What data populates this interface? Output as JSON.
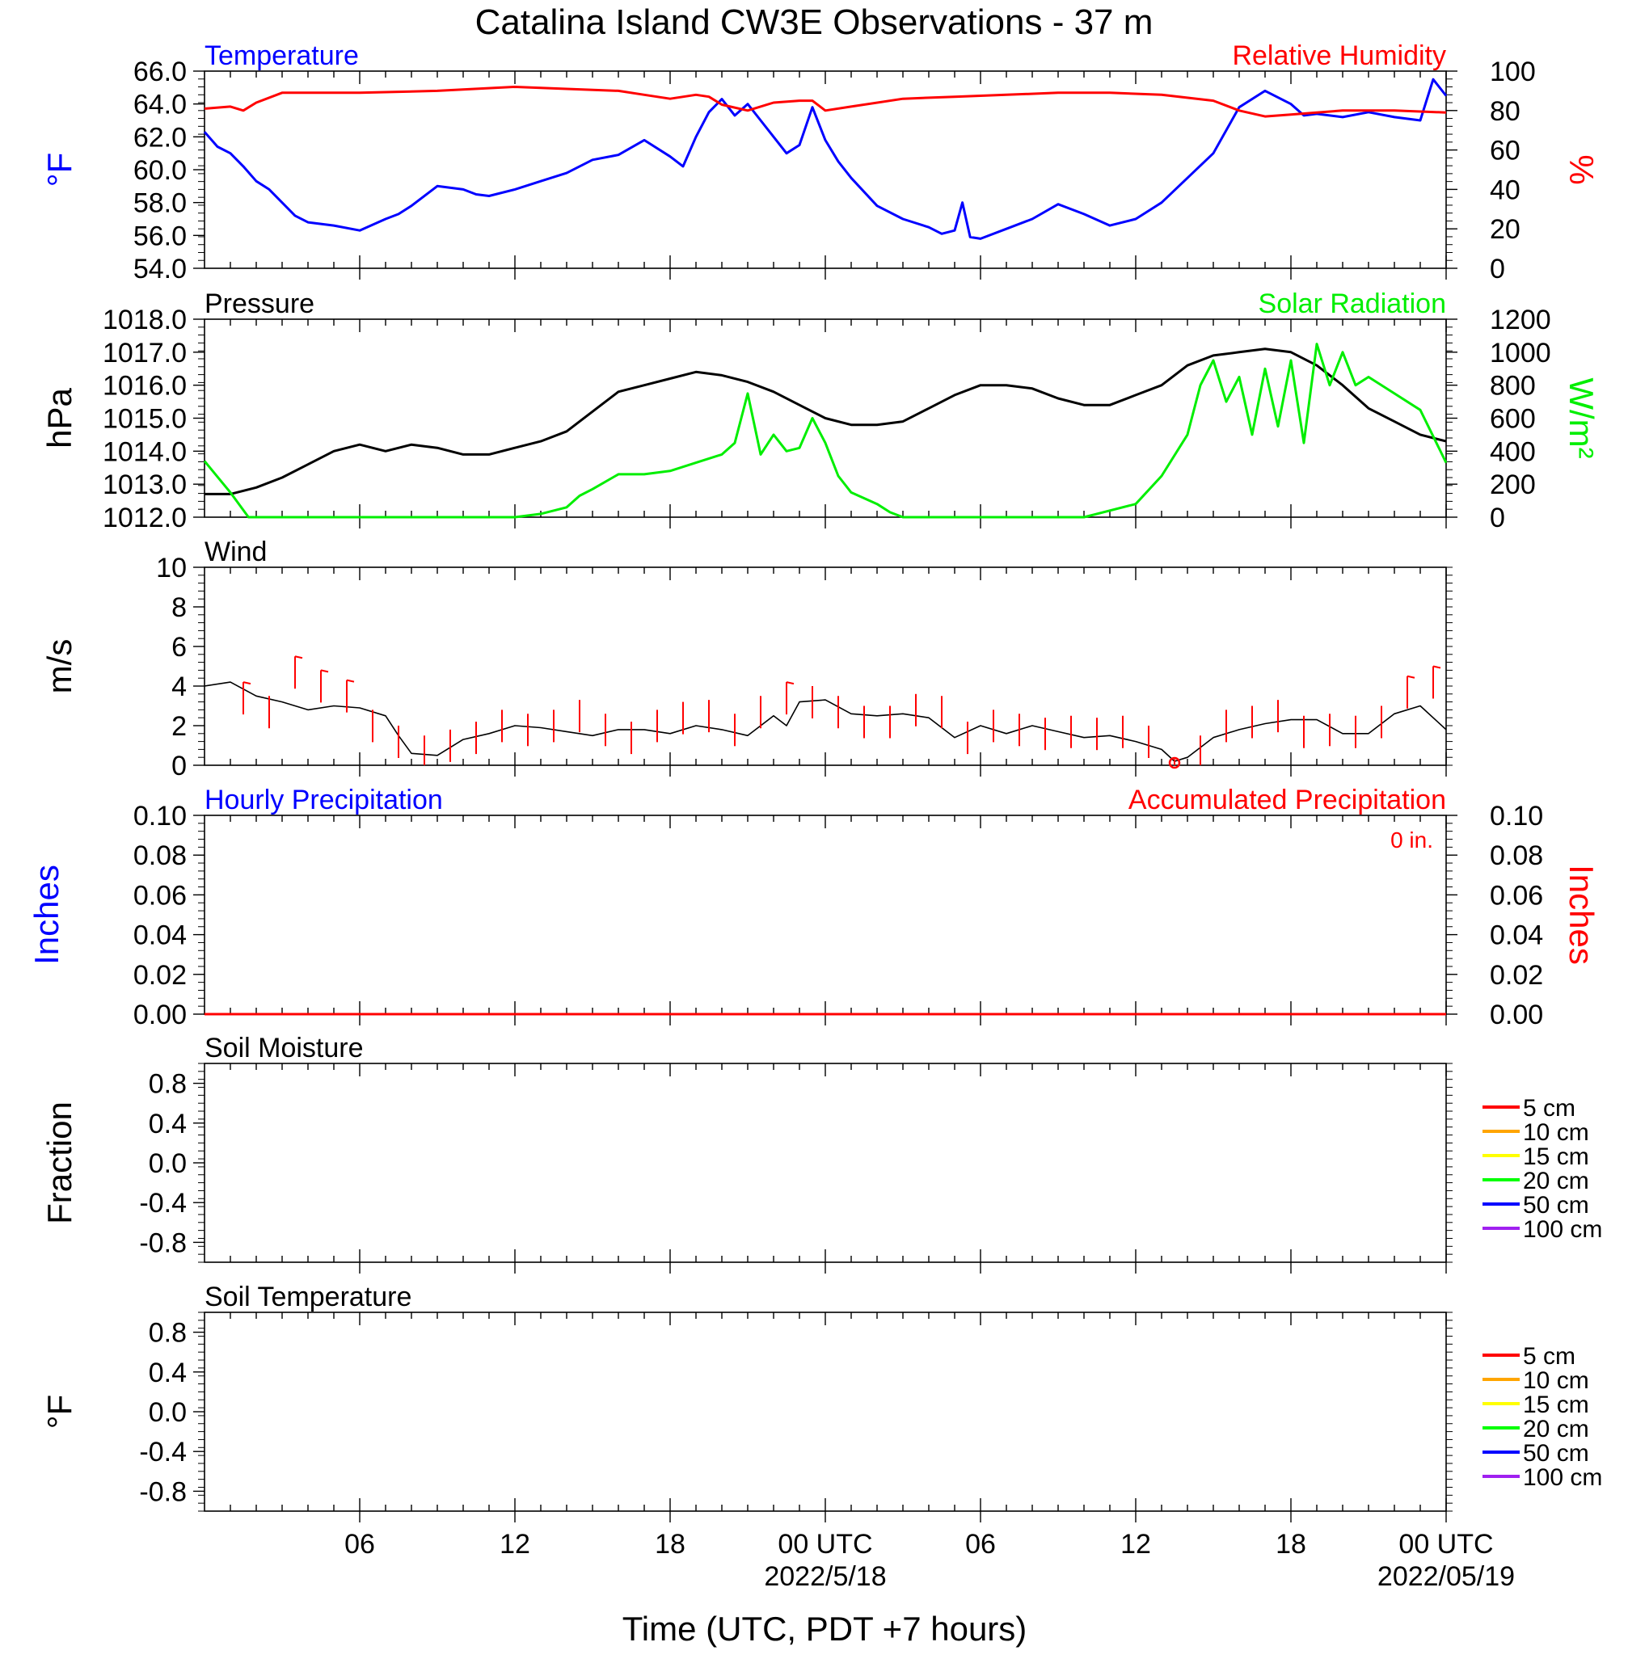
{
  "title": "Catalina Island CW3E Observations - 37 m",
  "xaxis": {
    "title": "Time (UTC, PDT +7 hours)",
    "tick_labels": [
      "06",
      "12",
      "18",
      "00 UTC",
      "06",
      "12",
      "18",
      "00 UTC"
    ],
    "date_labels": [
      "2022/5/18",
      "2022/05/19"
    ]
  },
  "colors": {
    "temperature": "#0000ff",
    "humidity": "#ff0000",
    "pressure": "#000000",
    "solar": "#00ee00",
    "wind": "#000000",
    "wind_barb": "#ff0000",
    "hourly_precip": "#0000ff",
    "accum_precip": "#ff0000"
  },
  "soil_legend": [
    {
      "label": "5 cm",
      "color": "#ff0000"
    },
    {
      "label": "10 cm",
      "color": "#ffa500"
    },
    {
      "label": "15 cm",
      "color": "#ffff00"
    },
    {
      "label": "20 cm",
      "color": "#00ff00"
    },
    {
      "label": "50 cm",
      "color": "#0000ff"
    },
    {
      "label": "100 cm",
      "color": "#a020f0"
    }
  ],
  "chart_data": [
    {
      "type": "line",
      "left_title": "Temperature",
      "right_title": "Relative Humidity",
      "left_axis_label": "°F",
      "right_axis_label": "%",
      "left_ylim": [
        54,
        66
      ],
      "left_ticks": [
        "54.0",
        "56.0",
        "58.0",
        "60.0",
        "62.0",
        "64.0",
        "66.0"
      ],
      "right_ylim": [
        0,
        100
      ],
      "right_ticks": [
        "0",
        "20",
        "40",
        "60",
        "80",
        "100"
      ],
      "x_range_hours": [
        0,
        48
      ],
      "series": [
        {
          "name": "Temperature",
          "axis": "left",
          "x": [
            0,
            0.5,
            1,
            1.5,
            2,
            2.5,
            3,
            3.5,
            4,
            5,
            6,
            7,
            7.5,
            8,
            9,
            10,
            10.5,
            11,
            12,
            13,
            14,
            15,
            16,
            17,
            18,
            18.5,
            19,
            19.5,
            20,
            20.5,
            21,
            21.5,
            22,
            22.5,
            23,
            23.5,
            24,
            24.5,
            25,
            26,
            27,
            28,
            28.5,
            29,
            29.3,
            29.6,
            30,
            31,
            32,
            33,
            34,
            35,
            36,
            37,
            38,
            39,
            40,
            41,
            42,
            42.5,
            43,
            44,
            45,
            46,
            47,
            47.5,
            48
          ],
          "values": [
            62.3,
            61.4,
            61.0,
            60.2,
            59.3,
            58.8,
            58.0,
            57.2,
            56.8,
            56.6,
            56.3,
            57.0,
            57.3,
            57.8,
            59.0,
            58.8,
            58.5,
            58.4,
            58.8,
            59.3,
            59.8,
            60.6,
            60.9,
            61.8,
            60.8,
            60.2,
            62.0,
            63.5,
            64.3,
            63.3,
            64.0,
            63.0,
            62.0,
            61.0,
            61.5,
            63.8,
            61.8,
            60.5,
            59.5,
            57.8,
            57.0,
            56.5,
            56.1,
            56.3,
            58.0,
            55.9,
            55.8,
            56.4,
            57.0,
            57.9,
            57.3,
            56.6,
            57.0,
            58.0,
            59.5,
            61.0,
            63.8,
            64.8,
            64.0,
            63.3,
            63.4,
            63.2,
            63.5,
            63.2,
            63.0,
            65.5,
            64.5
          ]
        },
        {
          "name": "Relative Humidity",
          "axis": "right",
          "x": [
            0,
            1,
            1.5,
            2,
            3,
            6,
            9,
            12,
            14,
            16,
            17,
            18,
            19,
            19.5,
            20,
            21,
            22,
            23,
            23.5,
            24,
            25,
            27,
            29,
            31,
            33,
            35,
            37,
            39,
            40,
            41,
            42,
            43,
            44,
            46,
            48
          ],
          "values": [
            81,
            82,
            80,
            84,
            89,
            89,
            90,
            92,
            91,
            90,
            88,
            86,
            88,
            87,
            83,
            80,
            84,
            85,
            85,
            80,
            82,
            86,
            87,
            88,
            89,
            89,
            88,
            85,
            80,
            77,
            78,
            79,
            80,
            80,
            79
          ]
        }
      ]
    },
    {
      "type": "line",
      "left_title": "Pressure",
      "right_title": "Solar Radiation",
      "left_axis_label": "hPa",
      "right_axis_label": "W/m²",
      "left_ylim": [
        1012,
        1018
      ],
      "left_ticks": [
        "1012.0",
        "1013.0",
        "1014.0",
        "1015.0",
        "1016.0",
        "1017.0",
        "1018.0"
      ],
      "right_ylim": [
        0,
        1200
      ],
      "right_ticks": [
        "0",
        "200",
        "400",
        "600",
        "800",
        "1000",
        "1200"
      ],
      "x_range_hours": [
        0,
        48
      ],
      "series": [
        {
          "name": "Pressure",
          "axis": "left",
          "x": [
            0,
            1,
            2,
            3,
            4,
            5,
            6,
            7,
            8,
            9,
            10,
            11,
            12,
            13,
            14,
            15,
            16,
            17,
            18,
            19,
            20,
            21,
            22,
            23,
            24,
            25,
            26,
            27,
            28,
            29,
            30,
            31,
            32,
            33,
            34,
            35,
            36,
            37,
            38,
            39,
            40,
            41,
            42,
            43,
            44,
            45,
            46,
            47,
            48
          ],
          "values": [
            1012.7,
            1012.7,
            1012.9,
            1013.2,
            1013.6,
            1014.0,
            1014.2,
            1014.0,
            1014.2,
            1014.1,
            1013.9,
            1013.9,
            1014.1,
            1014.3,
            1014.6,
            1015.2,
            1015.8,
            1016.0,
            1016.2,
            1016.4,
            1016.3,
            1016.1,
            1015.8,
            1015.4,
            1015.0,
            1014.8,
            1014.8,
            1014.9,
            1015.3,
            1015.7,
            1016.0,
            1016.0,
            1015.9,
            1015.6,
            1015.4,
            1015.4,
            1015.7,
            1016.0,
            1016.6,
            1016.9,
            1017.0,
            1017.1,
            1017.0,
            1016.6,
            1016.0,
            1015.3,
            1014.9,
            1014.5,
            1014.3
          ]
        },
        {
          "name": "Solar Radiation",
          "axis": "right",
          "x": [
            0,
            1,
            1.7,
            2,
            12,
            13,
            14,
            14.5,
            15,
            16,
            17,
            18,
            19,
            20,
            20.5,
            21,
            21.5,
            22,
            22.5,
            23,
            23.5,
            24,
            24.5,
            25,
            26,
            26.5,
            27,
            34,
            36,
            37,
            38,
            38.5,
            39,
            39.5,
            40,
            40.5,
            41,
            41.5,
            42,
            42.5,
            43,
            43.5,
            44,
            44.5,
            45,
            46,
            47,
            48
          ],
          "values": [
            340,
            150,
            0,
            0,
            0,
            20,
            60,
            130,
            170,
            260,
            260,
            280,
            330,
            380,
            450,
            750,
            380,
            500,
            400,
            420,
            600,
            450,
            250,
            150,
            80,
            30,
            0,
            0,
            80,
            250,
            500,
            800,
            950,
            700,
            850,
            500,
            900,
            550,
            950,
            450,
            1050,
            800,
            1000,
            800,
            850,
            750,
            650,
            330
          ]
        }
      ]
    },
    {
      "type": "line",
      "left_title": "Wind",
      "left_axis_label": "m/s",
      "left_ylim": [
        0,
        10
      ],
      "left_ticks": [
        "0",
        "2",
        "4",
        "6",
        "8",
        "10"
      ],
      "x_range_hours": [
        0,
        48
      ],
      "series": [
        {
          "name": "Wind",
          "axis": "left",
          "x": [
            0,
            1,
            2,
            3,
            4,
            5,
            6,
            7,
            7.5,
            8,
            9,
            10,
            11,
            12,
            13,
            14,
            15,
            16,
            17,
            18,
            19,
            20,
            21,
            22,
            22.5,
            23,
            24,
            25,
            26,
            27,
            28,
            29,
            30,
            31,
            32,
            33,
            34,
            35,
            36,
            37,
            37.5,
            38,
            39,
            40,
            41,
            42,
            43,
            44,
            45,
            46,
            47,
            48
          ],
          "values": [
            4.0,
            4.2,
            3.5,
            3.2,
            2.8,
            3.0,
            2.9,
            2.5,
            1.5,
            0.6,
            0.5,
            1.3,
            1.6,
            2.0,
            1.9,
            1.7,
            1.5,
            1.8,
            1.8,
            1.6,
            2.0,
            1.8,
            1.5,
            2.5,
            2.0,
            3.2,
            3.3,
            2.6,
            2.5,
            2.6,
            2.4,
            1.4,
            2.0,
            1.6,
            2.0,
            1.7,
            1.4,
            1.5,
            1.2,
            0.8,
            0.2,
            0.4,
            1.4,
            1.8,
            2.1,
            2.3,
            2.3,
            1.6,
            1.6,
            2.6,
            3.0,
            1.8
          ]
        }
      ],
      "wind_barb_hours": [
        1.5,
        2.5,
        3.5,
        4.5,
        5.5,
        6.5,
        7.5,
        8.5,
        9.5,
        10.5,
        11.5,
        12.5,
        13.5,
        14.5,
        15.5,
        16.5,
        17.5,
        18.5,
        19.5,
        20.5,
        21.5,
        22.5,
        23.5,
        24.5,
        25.5,
        26.5,
        27.5,
        28.5,
        29.5,
        30.5,
        31.5,
        32.5,
        33.5,
        34.5,
        35.5,
        36.5,
        37.5,
        38.5,
        39.5,
        40.5,
        41.5,
        42.5,
        43.5,
        44.5,
        45.5,
        46.5,
        47.5
      ],
      "wind_barb_values": [
        4.2,
        3.5,
        5.5,
        4.8,
        4.3,
        2.8,
        2.0,
        1.5,
        1.8,
        2.2,
        2.8,
        2.6,
        2.8,
        3.3,
        2.6,
        2.2,
        2.8,
        3.2,
        3.3,
        2.6,
        3.5,
        4.2,
        4.0,
        3.5,
        3.0,
        3.0,
        3.6,
        3.5,
        2.2,
        2.8,
        2.6,
        2.4,
        2.5,
        2.4,
        2.5,
        2.0,
        0.3,
        1.5,
        2.8,
        3.0,
        3.3,
        2.5,
        2.6,
        2.5,
        3.0,
        4.5,
        5.0
      ]
    },
    {
      "type": "line",
      "left_title": "Hourly Precipitation",
      "right_title": "Accumulated Precipitation",
      "right_note": "0 in.",
      "left_axis_label": "Inches",
      "right_axis_label": "Inches",
      "left_ylim": [
        0,
        0.1
      ],
      "left_ticks": [
        "0.00",
        "0.02",
        "0.04",
        "0.06",
        "0.08",
        "0.10"
      ],
      "right_ylim": [
        0,
        0.1
      ],
      "right_ticks": [
        "0.00",
        "0.02",
        "0.04",
        "0.06",
        "0.08",
        "0.10"
      ],
      "x_range_hours": [
        0,
        48
      ],
      "series": [
        {
          "name": "Hourly Precipitation",
          "axis": "left",
          "x": [
            0,
            48
          ],
          "values": [
            0,
            0
          ]
        },
        {
          "name": "Accumulated Precipitation",
          "axis": "right",
          "x": [
            0,
            48
          ],
          "values": [
            0,
            0
          ]
        }
      ]
    },
    {
      "type": "line",
      "left_title": "Soil Moisture",
      "left_axis_label": "Fraction",
      "left_ylim": [
        -1,
        1
      ],
      "left_ticks": [
        "-0.8",
        "-0.4",
        "0.0",
        "0.4",
        "0.8"
      ],
      "x_range_hours": [
        0,
        48
      ],
      "series": []
    },
    {
      "type": "line",
      "left_title": "Soil Temperature",
      "left_axis_label": "°F",
      "left_ylim": [
        -1,
        1
      ],
      "left_ticks": [
        "-0.8",
        "-0.4",
        "0.0",
        "0.4",
        "0.8"
      ],
      "x_range_hours": [
        0,
        48
      ],
      "series": []
    }
  ]
}
